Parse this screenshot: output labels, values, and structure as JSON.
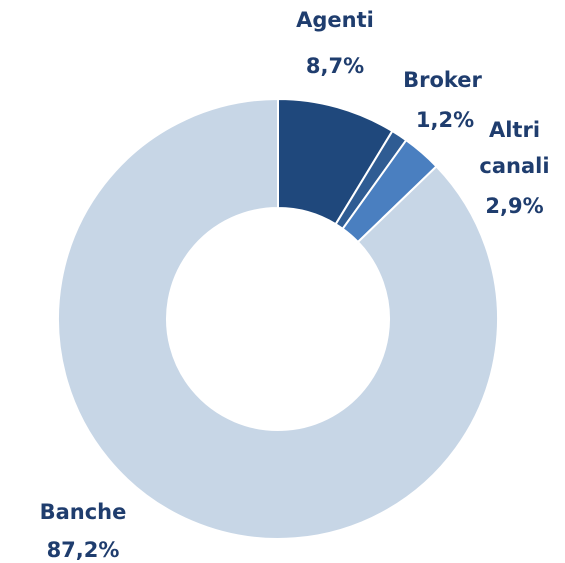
{
  "chart_data": {
    "type": "pie",
    "donut": true,
    "categories": [
      "Agenti",
      "Broker",
      "Altri canali",
      "Banche"
    ],
    "values": [
      8.7,
      1.2,
      2.9,
      87.2
    ],
    "value_labels": [
      "8,7%",
      "1,2%",
      "2,9%",
      "87,2%"
    ],
    "colors": [
      "#1f487c",
      "#2f5c93",
      "#4a7fc0",
      "#c7d6e6"
    ]
  }
}
